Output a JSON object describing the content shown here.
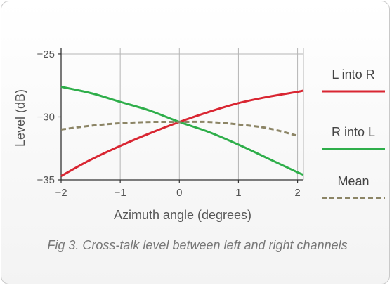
{
  "caption": "Fig 3. Cross-talk level between left and right channels",
  "colors": {
    "l_into_r": "#d92632",
    "r_into_l": "#2eae4a",
    "mean": "#8c8566",
    "axis": "#333333",
    "grid": "#b5b5b5"
  },
  "chart_data": {
    "type": "line",
    "xlabel": "Azimuth angle (degrees)",
    "ylabel": "Level (dB)",
    "xlim": [
      -2,
      2.1
    ],
    "ylim": [
      -35,
      -24.5
    ],
    "xticks": [
      -2,
      -1,
      0,
      1,
      2
    ],
    "xtick_labels": [
      "−2",
      "−1",
      "0",
      "1",
      "2"
    ],
    "yticks": [
      -35,
      -30,
      -25
    ],
    "ytick_labels": [
      "−35",
      "−30",
      "−25"
    ],
    "grid": true,
    "legend_position": "right",
    "x": [
      -2,
      -1.5,
      -1,
      -0.5,
      0,
      0.5,
      1,
      1.5,
      2,
      2.1
    ],
    "series": [
      {
        "name": "L into R",
        "style": "solid",
        "values": [
          -34.7,
          -33.4,
          -32.3,
          -31.3,
          -30.4,
          -29.6,
          -28.9,
          -28.4,
          -28.0,
          -27.9
        ]
      },
      {
        "name": "R into L",
        "style": "solid",
        "values": [
          -27.6,
          -28.1,
          -28.8,
          -29.5,
          -30.4,
          -31.2,
          -32.2,
          -33.3,
          -34.4,
          -34.6
        ]
      },
      {
        "name": "Mean",
        "style": "dashed",
        "values": [
          -31.0,
          -30.7,
          -30.5,
          -30.4,
          -30.4,
          -30.4,
          -30.6,
          -30.9,
          -31.5,
          null
        ]
      }
    ]
  }
}
